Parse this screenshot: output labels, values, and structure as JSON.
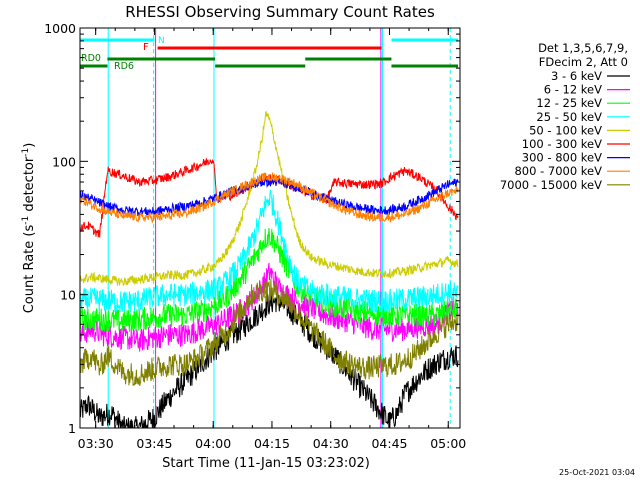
{
  "chart_data": {
    "type": "line",
    "title": "RHESSI Observing Summary Count Rates",
    "xlabel": "Start Time (11-Jan-15 03:23:02)",
    "ylabel_main": "Count Rate (s",
    "ylabel_sup1": "-1",
    "ylabel_mid": " detector",
    "ylabel_sup2": "-1",
    "ylabel_end": ")",
    "yscale": "log",
    "ylim": [
      1,
      1000
    ],
    "xlim_minutes": [
      3.0,
      100.0
    ],
    "x_ticks": [
      {
        "m": 7,
        "label": "03:30"
      },
      {
        "m": 22,
        "label": "03:45"
      },
      {
        "m": 37,
        "label": "04:00"
      },
      {
        "m": 52,
        "label": "04:15"
      },
      {
        "m": 67,
        "label": "04:30"
      },
      {
        "m": 82,
        "label": "04:45"
      },
      {
        "m": 97,
        "label": "05:00"
      }
    ],
    "y_ticks": [
      {
        "v": 1,
        "label": "1"
      },
      {
        "v": 10,
        "label": "10"
      },
      {
        "v": 100,
        "label": "100"
      },
      {
        "v": 1000,
        "label": "1000"
      }
    ],
    "legend_header": [
      "Det 1,3,5,6,7,9,",
      "FDecim 2, Att 0"
    ],
    "series": [
      {
        "name": "3 - 6 keV",
        "color": "#000000",
        "points": [
          [
            3,
            1.3
          ],
          [
            5,
            1.5
          ],
          [
            8,
            1.2
          ],
          [
            11,
            1.3
          ],
          [
            14,
            1.0
          ],
          [
            18,
            1.0
          ],
          [
            22,
            1.2
          ],
          [
            25,
            1.6
          ],
          [
            28,
            2.0
          ],
          [
            32,
            2.6
          ],
          [
            36,
            3.5
          ],
          [
            40,
            4.5
          ],
          [
            44,
            5.5
          ],
          [
            48,
            7.0
          ],
          [
            51,
            8.5
          ],
          [
            53,
            9.0
          ],
          [
            56,
            8.0
          ],
          [
            60,
            6.0
          ],
          [
            64,
            4.5
          ],
          [
            68,
            3.5
          ],
          [
            72,
            2.5
          ],
          [
            76,
            1.8
          ],
          [
            80,
            1.3
          ],
          [
            82,
            1.1
          ],
          [
            84,
            1.3
          ],
          [
            86,
            1.8
          ],
          [
            89,
            2.3
          ],
          [
            92,
            2.8
          ],
          [
            95,
            3.2
          ],
          [
            98,
            3.5
          ],
          [
            99.5,
            3.5
          ]
        ]
      },
      {
        "name": "6 - 12 keV",
        "color": "#ff00ff",
        "points": [
          [
            3,
            5.0
          ],
          [
            6,
            5.5
          ],
          [
            9,
            5.0
          ],
          [
            13,
            4.8
          ],
          [
            18,
            4.5
          ],
          [
            22,
            4.8
          ],
          [
            26,
            5.0
          ],
          [
            30,
            5.0
          ],
          [
            34,
            5.5
          ],
          [
            38,
            6.0
          ],
          [
            42,
            7.0
          ],
          [
            45,
            8.0
          ],
          [
            48,
            10.0
          ],
          [
            50,
            12.0
          ],
          [
            51.5,
            15.0
          ],
          [
            52.5,
            13.0
          ],
          [
            54,
            11.0
          ],
          [
            58,
            9.0
          ],
          [
            62,
            8.0
          ],
          [
            66,
            7.0
          ],
          [
            70,
            6.5
          ],
          [
            74,
            6.0
          ],
          [
            78,
            5.5
          ],
          [
            82,
            5.5
          ],
          [
            86,
            5.5
          ],
          [
            90,
            5.8
          ],
          [
            94,
            6.0
          ],
          [
            97,
            7.5
          ],
          [
            99.5,
            8.0
          ]
        ]
      },
      {
        "name": "12 - 25 keV",
        "color": "#00ff00",
        "points": [
          [
            3,
            6.5
          ],
          [
            6,
            6.5
          ],
          [
            10,
            6.5
          ],
          [
            14,
            6.3
          ],
          [
            18,
            6.5
          ],
          [
            22,
            6.8
          ],
          [
            26,
            7.0
          ],
          [
            30,
            7.0
          ],
          [
            34,
            7.5
          ],
          [
            38,
            8.5
          ],
          [
            41,
            10.0
          ],
          [
            44,
            13.0
          ],
          [
            46,
            16.0
          ],
          [
            48,
            20.0
          ],
          [
            50,
            26.0
          ],
          [
            51.5,
            28.0
          ],
          [
            53,
            24.0
          ],
          [
            55,
            18.0
          ],
          [
            57,
            14.0
          ],
          [
            59,
            11.0
          ],
          [
            62,
            9.5
          ],
          [
            66,
            8.5
          ],
          [
            70,
            8.0
          ],
          [
            74,
            7.5
          ],
          [
            78,
            7.2
          ],
          [
            82,
            7.0
          ],
          [
            86,
            7.0
          ],
          [
            90,
            7.0
          ],
          [
            94,
            7.0
          ],
          [
            97,
            7.5
          ],
          [
            99.5,
            8.0
          ]
        ]
      },
      {
        "name": "25 - 50 keV",
        "color": "#00ffff",
        "points": [
          [
            3,
            9.0
          ],
          [
            6,
            9.2
          ],
          [
            10,
            9.0
          ],
          [
            14,
            8.8
          ],
          [
            18,
            9.0
          ],
          [
            22,
            9.5
          ],
          [
            26,
            10.0
          ],
          [
            30,
            10.0
          ],
          [
            34,
            10.5
          ],
          [
            38,
            11.0
          ],
          [
            41,
            13.0
          ],
          [
            44,
            17.0
          ],
          [
            46,
            22.0
          ],
          [
            48,
            30.0
          ],
          [
            50,
            45.0
          ],
          [
            51.5,
            55.0
          ],
          [
            53,
            40.0
          ],
          [
            55,
            25.0
          ],
          [
            57,
            16.0
          ],
          [
            59,
            12.0
          ],
          [
            62,
            10.5
          ],
          [
            66,
            10.0
          ],
          [
            70,
            9.5
          ],
          [
            74,
            9.2
          ],
          [
            78,
            9.0
          ],
          [
            82,
            9.0
          ],
          [
            86,
            9.2
          ],
          [
            90,
            9.5
          ],
          [
            94,
            10.0
          ],
          [
            97,
            10.5
          ],
          [
            99.5,
            10.0
          ]
        ]
      },
      {
        "name": "50 - 100 keV",
        "color": "#cccc00",
        "points": [
          [
            3,
            13.0
          ],
          [
            6,
            13.5
          ],
          [
            10,
            13.0
          ],
          [
            14,
            12.5
          ],
          [
            18,
            13.0
          ],
          [
            22,
            13.5
          ],
          [
            26,
            14.0
          ],
          [
            30,
            14.0
          ],
          [
            34,
            15.0
          ],
          [
            38,
            17.0
          ],
          [
            41,
            22.0
          ],
          [
            44,
            35.0
          ],
          [
            46,
            55.0
          ],
          [
            48,
            90.0
          ],
          [
            49.5,
            150.0
          ],
          [
            50.5,
            230.0
          ],
          [
            51.5,
            200.0
          ],
          [
            53,
            130.0
          ],
          [
            55,
            70.0
          ],
          [
            57,
            40.0
          ],
          [
            59,
            25.0
          ],
          [
            62,
            19.0
          ],
          [
            66,
            17.0
          ],
          [
            70,
            16.0
          ],
          [
            74,
            15.0
          ],
          [
            78,
            14.5
          ],
          [
            82,
            14.5
          ],
          [
            86,
            15.0
          ],
          [
            90,
            16.0
          ],
          [
            94,
            17.0
          ],
          [
            97,
            18.0
          ],
          [
            99.5,
            17.0
          ]
        ]
      },
      {
        "name": "100 - 300 keV",
        "color": "#ff0000",
        "points": [
          [
            3,
            32.0
          ],
          [
            5,
            33.0
          ],
          [
            8,
            28.0
          ],
          [
            10,
            85.0
          ],
          [
            14,
            78.0
          ],
          [
            18,
            70.0
          ],
          [
            22,
            72.0
          ],
          [
            26,
            77.0
          ],
          [
            30,
            85.0
          ],
          [
            34,
            95.0
          ],
          [
            37,
            105.0
          ],
          [
            38,
            52.0
          ],
          [
            42,
            56.0
          ],
          [
            46,
            65.0
          ],
          [
            50,
            75.0
          ],
          [
            54,
            72.0
          ],
          [
            58,
            63.0
          ],
          [
            62,
            56.0
          ],
          [
            66,
            52.0
          ],
          [
            68,
            70.0
          ],
          [
            72,
            68.0
          ],
          [
            76,
            67.0
          ],
          [
            80,
            68.0
          ],
          [
            82,
            75.0
          ],
          [
            86,
            85.0
          ],
          [
            90,
            75.0
          ],
          [
            94,
            60.0
          ],
          [
            97,
            46.0
          ],
          [
            99.5,
            38.0
          ]
        ]
      },
      {
        "name": "300 - 800 keV",
        "color": "#0000ff",
        "points": [
          [
            3,
            56.0
          ],
          [
            6,
            52.0
          ],
          [
            10,
            46.0
          ],
          [
            14,
            43.0
          ],
          [
            18,
            42.0
          ],
          [
            22,
            42.0
          ],
          [
            26,
            44.0
          ],
          [
            30,
            46.0
          ],
          [
            34,
            49.0
          ],
          [
            38,
            54.0
          ],
          [
            42,
            60.0
          ],
          [
            46,
            66.0
          ],
          [
            50,
            70.0
          ],
          [
            54,
            70.0
          ],
          [
            58,
            65.0
          ],
          [
            62,
            58.0
          ],
          [
            66,
            52.0
          ],
          [
            70,
            48.0
          ],
          [
            74,
            45.0
          ],
          [
            78,
            43.0
          ],
          [
            82,
            43.0
          ],
          [
            86,
            46.0
          ],
          [
            90,
            52.0
          ],
          [
            94,
            60.0
          ],
          [
            97,
            67.0
          ],
          [
            99.5,
            70.0
          ]
        ]
      },
      {
        "name": "800 - 7000 keV",
        "color": "#ff8000",
        "points": [
          [
            3,
            53.0
          ],
          [
            6,
            47.0
          ],
          [
            10,
            42.0
          ],
          [
            14,
            39.0
          ],
          [
            18,
            38.0
          ],
          [
            22,
            38.0
          ],
          [
            26,
            39.0
          ],
          [
            30,
            41.0
          ],
          [
            34,
            45.0
          ],
          [
            38,
            52.0
          ],
          [
            42,
            60.0
          ],
          [
            46,
            68.0
          ],
          [
            50,
            76.0
          ],
          [
            54,
            75.0
          ],
          [
            58,
            68.0
          ],
          [
            62,
            58.0
          ],
          [
            66,
            50.0
          ],
          [
            70,
            44.0
          ],
          [
            74,
            40.0
          ],
          [
            78,
            38.0
          ],
          [
            82,
            38.0
          ],
          [
            86,
            40.0
          ],
          [
            90,
            45.0
          ],
          [
            94,
            52.0
          ],
          [
            97,
            58.0
          ],
          [
            99.5,
            60.0
          ]
        ]
      },
      {
        "name": "7000 - 15000 keV",
        "color": "#808000",
        "points": [
          [
            3,
            3.0
          ],
          [
            6,
            3.5
          ],
          [
            8,
            2.8
          ],
          [
            10,
            3.5
          ],
          [
            14,
            2.6
          ],
          [
            18,
            2.5
          ],
          [
            22,
            2.8
          ],
          [
            26,
            3.0
          ],
          [
            30,
            3.0
          ],
          [
            34,
            3.5
          ],
          [
            38,
            4.5
          ],
          [
            41,
            5.5
          ],
          [
            44,
            7.5
          ],
          [
            47,
            10.0
          ],
          [
            50,
            11.0
          ],
          [
            53,
            10.5
          ],
          [
            56,
            9.0
          ],
          [
            59,
            7.0
          ],
          [
            62,
            5.5
          ],
          [
            65,
            4.5
          ],
          [
            68,
            3.5
          ],
          [
            72,
            3.0
          ],
          [
            76,
            2.8
          ],
          [
            80,
            2.9
          ],
          [
            84,
            3.0
          ],
          [
            88,
            3.5
          ],
          [
            92,
            4.5
          ],
          [
            95,
            5.5
          ],
          [
            97,
            6.0
          ],
          [
            99.5,
            6.5
          ]
        ]
      }
    ],
    "mode_bars": [
      {
        "label": "N",
        "color": "#00ffff",
        "segments": [
          [
            3.0,
            22.0
          ],
          [
            82.5,
            99.5
          ]
        ]
      },
      {
        "label": "F",
        "color": "#ff0000",
        "segments": [
          [
            22.8,
            80.0
          ]
        ]
      },
      {
        "label": "RD0",
        "color": "#008000",
        "segments": [
          [
            10.0,
            37.5
          ],
          [
            60.5,
            82.5
          ]
        ]
      },
      {
        "label": "RD6",
        "color": "#008000",
        "segments": [
          [
            3.0,
            10.0
          ],
          [
            37.5,
            60.5
          ],
          [
            82.5,
            99.5
          ]
        ]
      }
    ],
    "vertical_lines": [
      {
        "m": 10.2,
        "color": "#00ffff",
        "dashed": false
      },
      {
        "m": 21.8,
        "color": "#00ffff",
        "dashed": true
      },
      {
        "m": 37.2,
        "color": "#00ffff",
        "dashed": false
      },
      {
        "m": 80.2,
        "color": "#00ffff",
        "dashed": false
      },
      {
        "m": 97.5,
        "color": "#00ffff",
        "dashed": true
      },
      {
        "m": 22.3,
        "color": "#ff00ff",
        "dashed": false
      },
      {
        "m": 79.8,
        "color": "#ff00ff",
        "dashed": false
      }
    ],
    "footer_timestamp": "25-Oct-2021 03:04"
  }
}
